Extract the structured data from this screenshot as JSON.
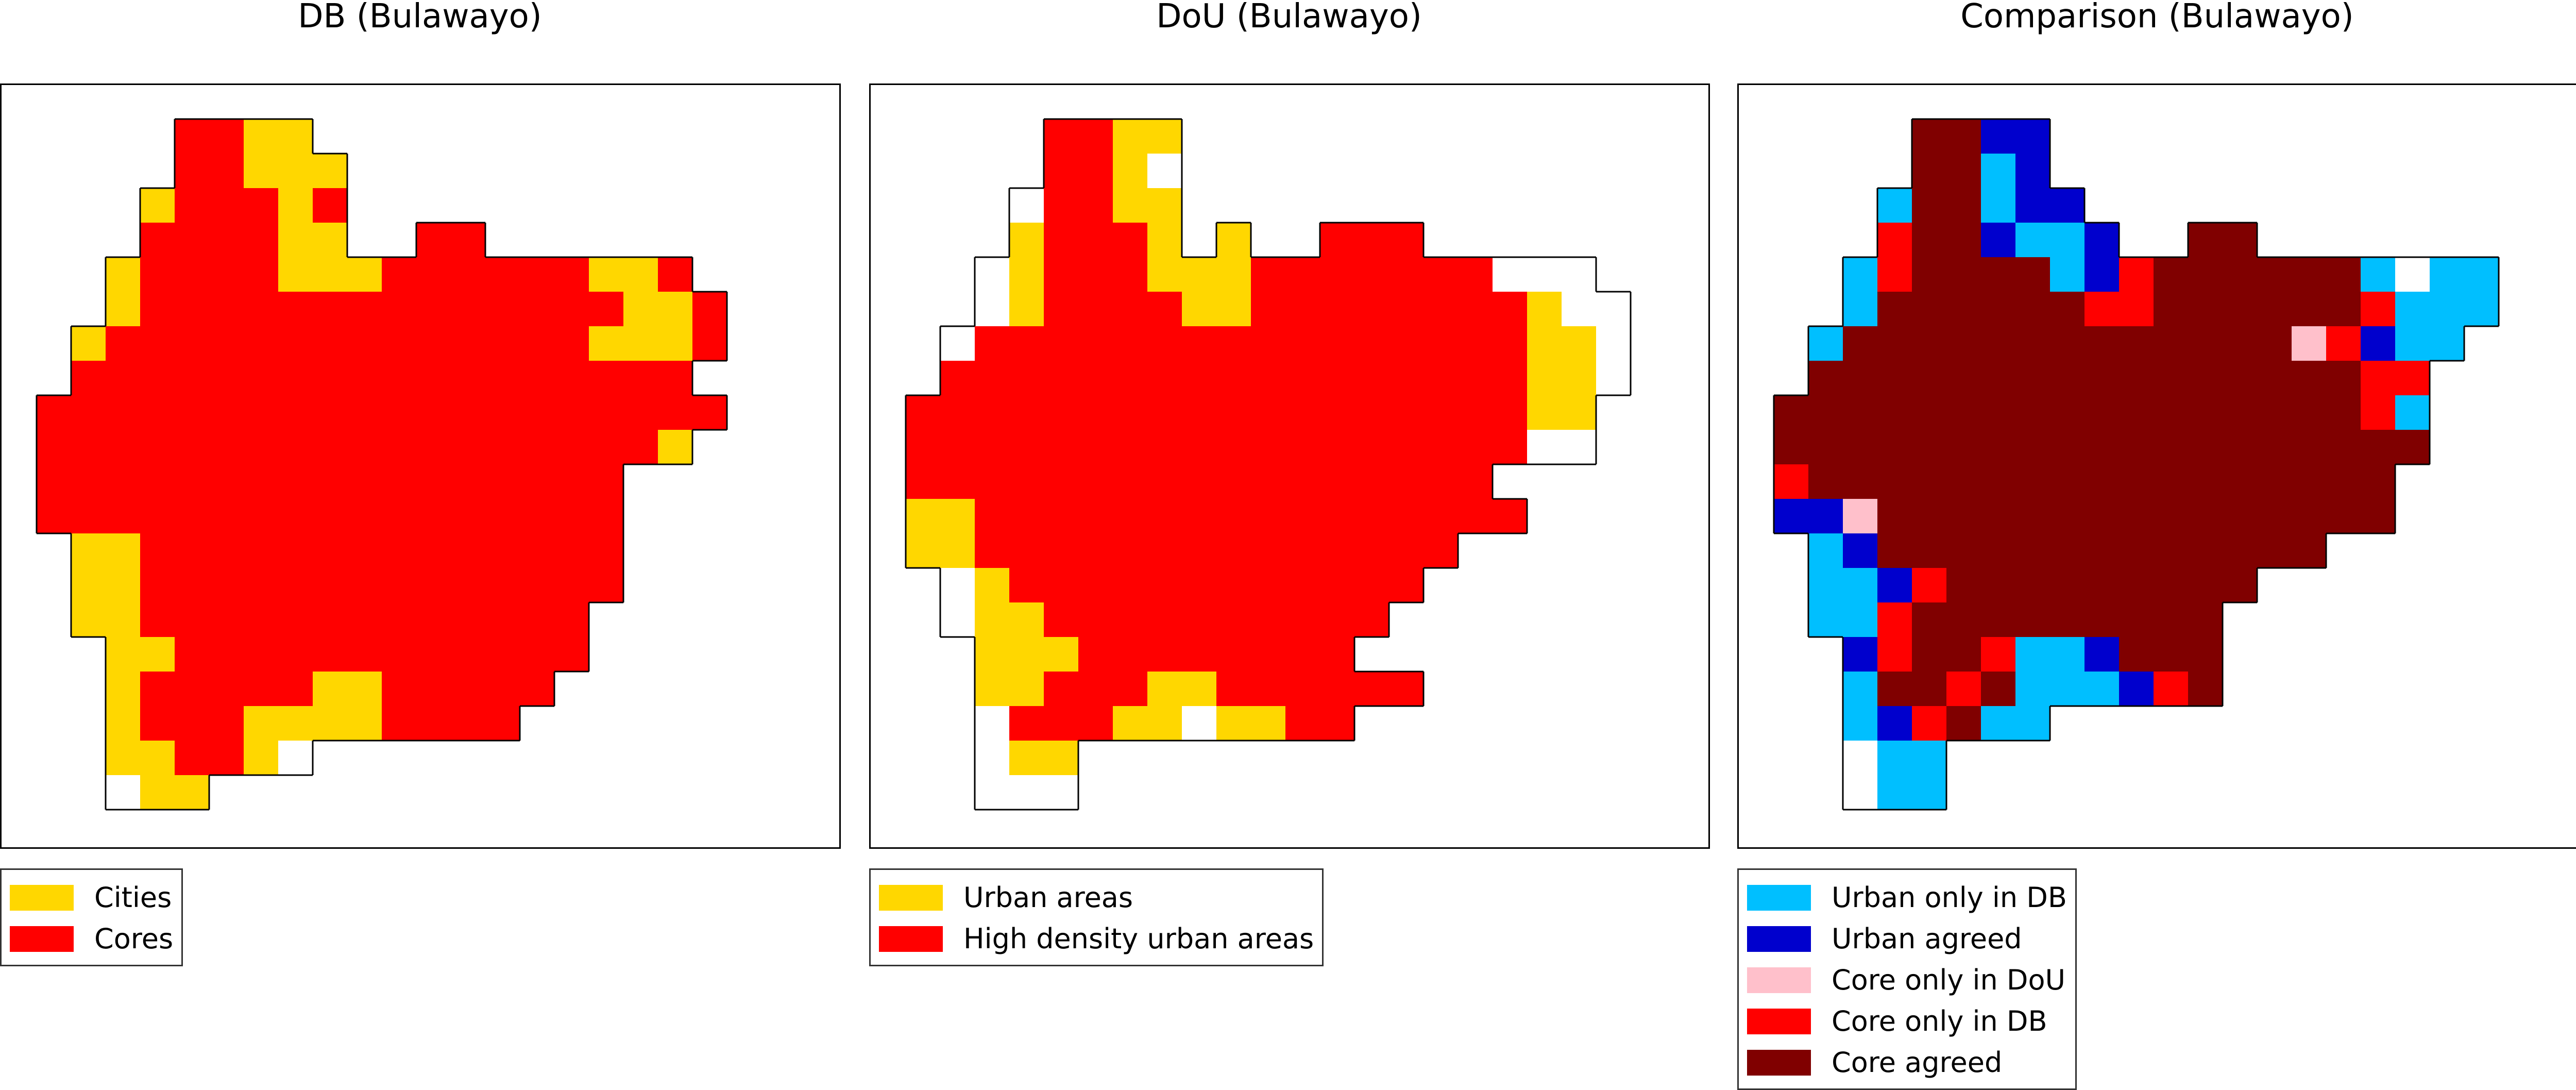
{
  "panels": [
    {
      "title": "DB (Bulawayo)",
      "legend": [
        {
          "label": "Cities",
          "color": "#ffd700",
          "code": 1
        },
        {
          "label": "Cores",
          "color": "#ff0000",
          "code": 2
        }
      ]
    },
    {
      "title": "DoU (Bulawayo)",
      "legend": [
        {
          "label": "Urban areas",
          "color": "#ffd700",
          "code": 1
        },
        {
          "label": "High density urban areas",
          "color": "#ff0000",
          "code": 2
        }
      ]
    },
    {
      "title": "Comparison (Bulawayo)",
      "legend": [
        {
          "label": "Urban only in DB",
          "color": "#00bfff",
          "code": 1
        },
        {
          "label": "Urban agreed",
          "color": "#0000cd",
          "code": 2
        },
        {
          "label": "Core only in DoU",
          "color": "#ffc0cb",
          "code": 3
        },
        {
          "label": "Core only in DB",
          "color": "#ff0000",
          "code": 4
        },
        {
          "label": "Core agreed",
          "color": "#800000",
          "code": 5
        }
      ]
    }
  ],
  "grid_base": {
    "_comment_codes": "0 = outside area, 1 = inside area unclassified",
    "rows": [
      "....XXXXXX..........",
      "....XXXXXXX.........",
      "...XXXXXXXXX........",
      "...XXXXXXXXX..XXXX..",
      "..XXXXXXXXXXXXXXXXXXXX",
      "..XXXXXXXXXXXXXXXXXXXX",
      ".XXXXXXXXXXXXXXXXXXXX.",
      ".XXXXXXXXXXXXXXXXXXX..",
      "XXXXXXXXXXXXXXXXXXX...",
      "XXXXXXXXXXXXXXXXXX....",
      "XXXXXXXXXXXXXXXXXX....",
      "XXXXXXXXXXXXXXXXXX....",
      ".XXXXXXXXXXXXXXXX.....",
      ".XXXXXXXXXXXXXXXX.....",
      ".XXXXXXXXXXXXXXX......",
      "..XXXXXXXXXXXXXX......",
      "..XXXXXXXXXXXXX.......",
      "..XXXXXXXXXXXX........",
      "..XXXXXXXXXXX.........",
      "..XXXXXXXX............"
    ]
  },
  "grids": [
    [
      "....2211..........",
      "....22111.........",
      "...122212.........",
      "...222211..22.....",
      "..12222111222222112",
      "..122222222222222112",
      ".1222222222222221112",
      ".222222222222222222.",
      "22222222222222222222",
      "2222222222222222221.",
      "22222222222222222...",
      "22222222222222222...",
      ".1122222222222222...",
      ".1122222222222222...",
      ".112222222222222....",
      "..11222222222222....",
      "..1222221122222.....",
      "..122211112222......",
      "..112210..........",
      "..011.............."
    ],
    [
      "....2211..........",
      "....2210..........",
      "...02211..........",
      "...12221.1..222...",
      "..012221112222222000",
      "..0122221122222222100",
      ".02222222222222222110",
      ".22222222222222222110",
      "22222222222222222211.",
      "22222222222222222200.",
      "22222222222222222...",
      "112222222222222222..",
      "1122222222222222....",
      ".01222222222222.....",
      ".0112222222222......",
      "..11122222222.......",
      "..1122211222222.....",
      "..02221101122.......",
      "..011............",
      "..000.............."
    ],
    [
      "....5522..........",
      "....5512..........",
      "...155122.........",
      "...4552112..55....",
      "..1455551245555551011",
      "..1555555445555554111",
      ".1555555555555534211",
      ".555555555555555544.",
      "5555555555555555541.",
      "5555555555555555555.",
      "455555555555555555..",
      "223555555555555555..",
      ".125555555555555....",
      ".1124555555555......",
      ".114555555555.......",
      "..24554112555.......",
      "..15545111245.......",
      "..124511..........",
      "..011.............",
      "..011.............."
    ]
  ]
}
